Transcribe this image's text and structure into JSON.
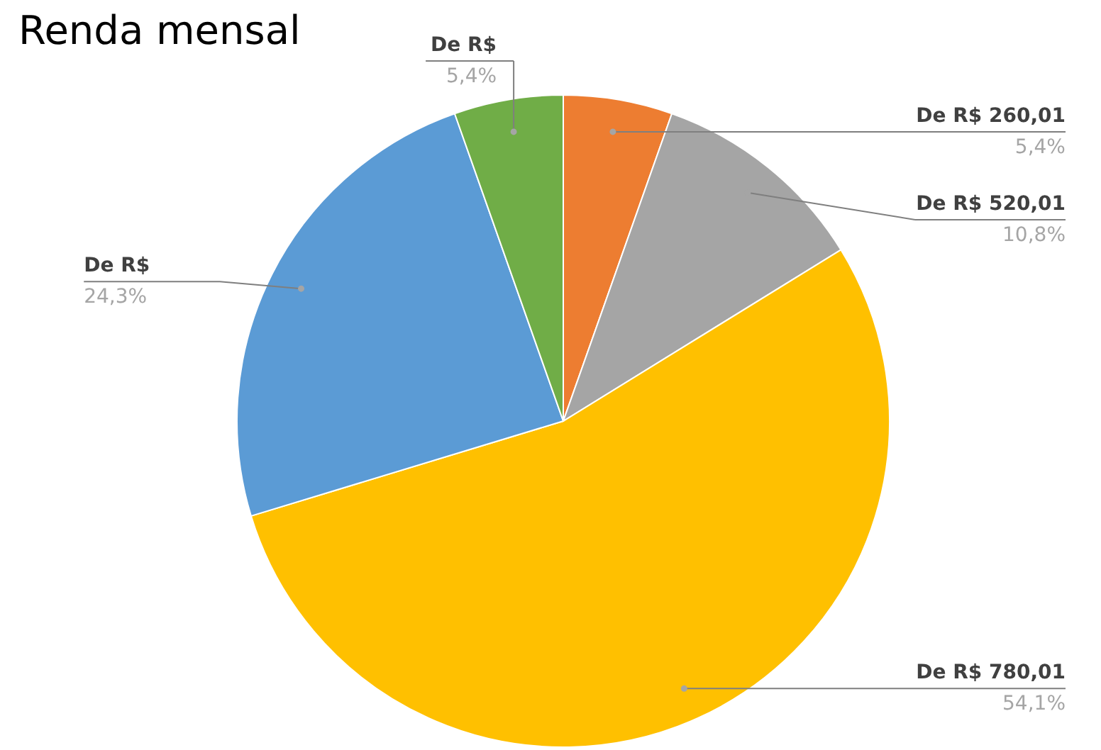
{
  "chart_data": {
    "type": "pie",
    "title": "Renda mensal",
    "categories": [
      "De R$ 260,01",
      "De R$ 520,01",
      "De R$ 780,01",
      "De R$",
      "De R$"
    ],
    "values": [
      5.4,
      10.8,
      54.1,
      24.3,
      5.4
    ],
    "value_labels": [
      "5,4%",
      "10,8%",
      "54,1%",
      "24,3%",
      "5,4%"
    ],
    "colors": [
      "#ed7d31",
      "#a5a5a5",
      "#ffc000",
      "#5b9bd5",
      "#70ad47"
    ]
  }
}
